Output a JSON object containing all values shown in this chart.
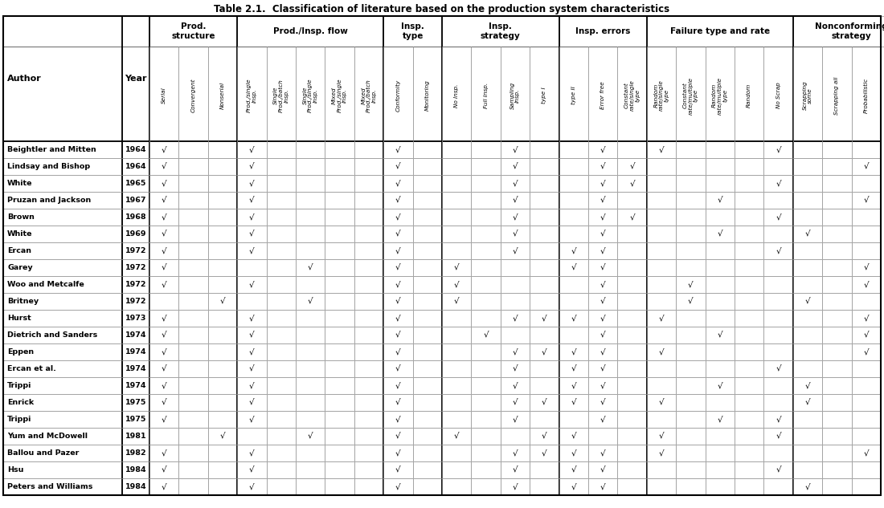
{
  "title": "Table 2.1.  Classification of literature based on the production system characteristics",
  "authors": [
    "Beightler and Mitten",
    "Lindsay and Bishop",
    "White",
    "Pruzan and Jackson",
    "Brown",
    "White",
    "Ercan",
    "Garey",
    "Woo and Metcalfe",
    "Britney",
    "Hurst",
    "Dietrich and Sanders",
    "Eppen",
    "Ercan et al.",
    "Trippi",
    "Enrick",
    "Trippi",
    "Yum and McDowell",
    "Ballou and Pazer",
    "Hsu",
    "Peters and Williams"
  ],
  "years": [
    "1964",
    "1964",
    "1965",
    "1967",
    "1968",
    "1969",
    "1972",
    "1972",
    "1972",
    "1972",
    "1973",
    "1974",
    "1974",
    "1974",
    "1974",
    "1975",
    "1975",
    "1981",
    "1982",
    "1984",
    "1984"
  ],
  "header_groups": [
    {
      "label": "Prod.\nstructure",
      "ncols": 3
    },
    {
      "label": "Prod./Insp. flow",
      "ncols": 5
    },
    {
      "label": "Insp.\ntype",
      "ncols": 2
    },
    {
      "label": "Insp.\nstrategy",
      "ncols": 4
    },
    {
      "label": "Insp. errors",
      "ncols": 3
    },
    {
      "label": "Failure type and rate",
      "ncols": 5
    },
    {
      "label": "Nonconforming\nstrategy",
      "ncols": 4
    }
  ],
  "subheaders_display": [
    "Serial",
    "Convergent",
    "Nonserial",
    "Prod./single\nInsp.",
    "Single\nProd./batch\nInsp.",
    "Single\nProd./single\nInsp.",
    "Mixed\nProd./single\nInsp.",
    "Mixed\nProd",
    "Conformity",
    "Monitoring",
    "No Insp.",
    "Full Insp.",
    "Sampling Insp.",
    "type I",
    "type II",
    "Error free",
    "Constant\nrate/single type",
    "Random\nrate/single type",
    "Constant\nrate/multiple type",
    "Random\nrate/multiple type",
    "Random",
    "No Scrap",
    "Scrapping some",
    "Scrapping all",
    "Probabilistic"
  ],
  "data": [
    [
      1,
      0,
      0,
      1,
      0,
      0,
      0,
      0,
      1,
      0,
      0,
      0,
      1,
      0,
      0,
      1,
      0,
      1,
      0,
      0,
      0,
      1,
      0,
      0,
      0
    ],
    [
      1,
      0,
      0,
      1,
      0,
      0,
      0,
      0,
      1,
      0,
      0,
      0,
      1,
      0,
      0,
      1,
      1,
      0,
      0,
      0,
      0,
      0,
      0,
      0,
      1
    ],
    [
      1,
      0,
      0,
      1,
      0,
      0,
      0,
      0,
      1,
      0,
      0,
      0,
      1,
      0,
      0,
      1,
      1,
      0,
      0,
      0,
      0,
      1,
      0,
      0,
      0
    ],
    [
      1,
      0,
      0,
      1,
      0,
      0,
      0,
      0,
      1,
      0,
      0,
      0,
      1,
      0,
      0,
      1,
      0,
      0,
      0,
      1,
      0,
      0,
      0,
      0,
      1
    ],
    [
      1,
      0,
      0,
      1,
      0,
      0,
      0,
      0,
      1,
      0,
      0,
      0,
      1,
      0,
      0,
      1,
      1,
      0,
      0,
      0,
      0,
      1,
      0,
      0,
      0
    ],
    [
      1,
      0,
      0,
      1,
      0,
      0,
      0,
      0,
      1,
      0,
      0,
      0,
      1,
      0,
      0,
      1,
      0,
      0,
      0,
      1,
      0,
      0,
      1,
      0,
      0
    ],
    [
      1,
      0,
      0,
      1,
      0,
      0,
      0,
      0,
      1,
      0,
      0,
      0,
      1,
      0,
      1,
      1,
      0,
      0,
      0,
      0,
      0,
      1,
      0,
      0,
      0
    ],
    [
      1,
      0,
      0,
      0,
      0,
      1,
      0,
      0,
      1,
      0,
      1,
      0,
      0,
      0,
      1,
      1,
      0,
      0,
      0,
      0,
      0,
      0,
      0,
      0,
      1
    ],
    [
      1,
      0,
      0,
      1,
      0,
      0,
      0,
      0,
      1,
      0,
      1,
      0,
      0,
      0,
      0,
      1,
      0,
      0,
      1,
      0,
      0,
      0,
      0,
      0,
      1
    ],
    [
      0,
      0,
      1,
      0,
      0,
      1,
      0,
      0,
      1,
      0,
      1,
      0,
      0,
      0,
      0,
      1,
      0,
      0,
      1,
      0,
      0,
      0,
      1,
      0,
      0
    ],
    [
      1,
      0,
      0,
      1,
      0,
      0,
      0,
      0,
      1,
      0,
      0,
      0,
      1,
      1,
      1,
      1,
      0,
      1,
      0,
      0,
      0,
      0,
      0,
      0,
      1
    ],
    [
      1,
      0,
      0,
      1,
      0,
      0,
      0,
      0,
      1,
      0,
      0,
      1,
      0,
      0,
      0,
      1,
      0,
      0,
      0,
      1,
      0,
      0,
      0,
      0,
      1
    ],
    [
      1,
      0,
      0,
      1,
      0,
      0,
      0,
      0,
      1,
      0,
      0,
      0,
      1,
      1,
      1,
      1,
      0,
      1,
      0,
      0,
      0,
      0,
      0,
      0,
      1
    ],
    [
      1,
      0,
      0,
      1,
      0,
      0,
      0,
      0,
      1,
      0,
      0,
      0,
      1,
      0,
      1,
      1,
      0,
      0,
      0,
      0,
      0,
      1,
      0,
      0,
      0
    ],
    [
      1,
      0,
      0,
      1,
      0,
      0,
      0,
      0,
      1,
      0,
      0,
      0,
      1,
      0,
      1,
      1,
      0,
      0,
      0,
      1,
      0,
      0,
      1,
      0,
      0
    ],
    [
      1,
      0,
      0,
      1,
      0,
      0,
      0,
      0,
      1,
      0,
      0,
      0,
      1,
      1,
      1,
      1,
      0,
      1,
      0,
      0,
      0,
      0,
      1,
      0,
      0
    ],
    [
      1,
      0,
      0,
      1,
      0,
      0,
      0,
      0,
      1,
      0,
      0,
      0,
      1,
      0,
      0,
      1,
      0,
      0,
      0,
      1,
      0,
      1,
      0,
      0,
      0
    ],
    [
      0,
      0,
      1,
      0,
      0,
      1,
      0,
      0,
      1,
      0,
      1,
      0,
      0,
      1,
      1,
      0,
      0,
      1,
      0,
      0,
      0,
      1,
      0,
      0,
      0
    ],
    [
      1,
      0,
      0,
      1,
      0,
      0,
      0,
      0,
      1,
      0,
      0,
      0,
      1,
      1,
      1,
      1,
      0,
      1,
      0,
      0,
      0,
      0,
      0,
      0,
      1
    ],
    [
      1,
      0,
      0,
      1,
      0,
      0,
      0,
      0,
      1,
      0,
      0,
      0,
      1,
      0,
      1,
      1,
      0,
      0,
      0,
      0,
      0,
      1,
      0,
      0,
      0
    ],
    [
      1,
      0,
      0,
      1,
      0,
      0,
      0,
      0,
      1,
      0,
      0,
      0,
      1,
      0,
      1,
      1,
      0,
      0,
      0,
      0,
      0,
      0,
      1,
      0,
      0
    ]
  ],
  "subheaders_text": [
    "Serial",
    "Convergent",
    "Nonserial",
    "Prod./single Insp.",
    "Single Prod./batch Insp.",
    "Single Prod./single Insp.",
    "Mixed Prod./single Insp.",
    "Mixed Prod",
    "Conformity",
    "Monitoring",
    "No Insp.",
    "Full Insp.",
    "Sampling Insp.",
    "type I",
    "type II",
    "Error free",
    "Constant rate/single type",
    "Random rate/single type",
    "Constant rate/multiple type",
    "Random rate/multiple type",
    "Random",
    "No Scrap",
    "Scrapping some",
    "Scrapping all",
    "Probabilistic"
  ]
}
